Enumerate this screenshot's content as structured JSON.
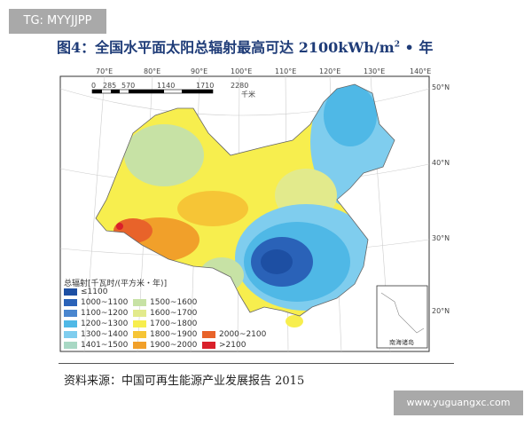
{
  "watermark_top": "TG: MYYJJPP",
  "title": {
    "main": "图4：全国水平面太阳总辐射最高可达 2100kWh/m",
    "sup": "2",
    "tail": " • 年"
  },
  "map": {
    "longitudes": [
      "70°E",
      "80°E",
      "90°E",
      "100°E",
      "110°E",
      "120°E",
      "130°E",
      "140°E"
    ],
    "latitudes": [
      "50°N",
      "40°N",
      "30°N",
      "20°N"
    ],
    "scale_bar": {
      "ticks": [
        "0",
        "285",
        "570",
        "1140",
        "1710",
        "2280"
      ],
      "unit": "千米"
    },
    "inset_label": "南海诸岛",
    "legend": {
      "title": "总辐射[千瓦时/(平方米・年)]",
      "items": [
        {
          "label": "≤1100",
          "color": "#1d4fa3"
        },
        {
          "label": "1000~1100",
          "color": "#2a62b8"
        },
        {
          "label": "1100~1200",
          "color": "#4a86cf"
        },
        {
          "label": "1200~1300",
          "color": "#4fb8e6"
        },
        {
          "label": "1300~1400",
          "color": "#7fcdee"
        },
        {
          "label": "1401~1500",
          "color": "#a8d8c4"
        },
        {
          "label": "1500~1600",
          "color": "#c7e2a5"
        },
        {
          "label": "1600~1700",
          "color": "#e2ea8c"
        },
        {
          "label": "1700~1800",
          "color": "#f7ee4e"
        },
        {
          "label": "1800~1900",
          "color": "#f6c536"
        },
        {
          "label": "1900~2000",
          "color": "#f1a02a"
        },
        {
          "label": "2000~2100",
          "color": "#e8632a"
        },
        {
          "label": ">2100",
          "color": "#d9202a"
        }
      ]
    }
  },
  "source": "资料来源：中国可再生能源产业发展报告 2015",
  "watermark_bottom": "www.yuguangxc.com"
}
